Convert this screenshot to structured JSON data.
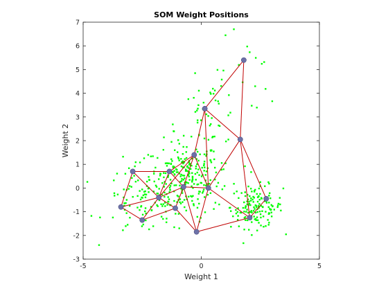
{
  "chart_data": {
    "type": "scatter",
    "title": "SOM Weight Positions",
    "xlabel": "Weight 1",
    "ylabel": "Weight 2",
    "xlim": [
      -5,
      5
    ],
    "ylim": [
      -3,
      7
    ],
    "xticks": [
      -5,
      0,
      5
    ],
    "yticks": [
      -3,
      -2,
      -1,
      0,
      1,
      2,
      3,
      4,
      5,
      6,
      7
    ],
    "grid": false,
    "colors": {
      "data": "#00ff00",
      "neurons": "#6e72a8",
      "edges": "#c00000"
    },
    "neurons": [
      {
        "x": 1.8,
        "y": 5.4
      },
      {
        "x": 0.15,
        "y": 3.35
      },
      {
        "x": 1.65,
        "y": 2.05
      },
      {
        "x": -0.3,
        "y": 1.4
      },
      {
        "x": -2.9,
        "y": 0.7
      },
      {
        "x": -1.35,
        "y": 0.7
      },
      {
        "x": -0.75,
        "y": 0.05
      },
      {
        "x": 0.3,
        "y": 0.0
      },
      {
        "x": -3.4,
        "y": -0.8
      },
      {
        "x": -1.8,
        "y": -0.4
      },
      {
        "x": -2.5,
        "y": -1.35
      },
      {
        "x": -1.1,
        "y": -0.85
      },
      {
        "x": -0.2,
        "y": -1.85
      },
      {
        "x": 2.05,
        "y": -1.25
      },
      {
        "x": 2.75,
        "y": -0.45
      }
    ],
    "edges": [
      [
        0,
        1
      ],
      [
        0,
        2
      ],
      [
        1,
        2
      ],
      [
        1,
        3
      ],
      [
        1,
        7
      ],
      [
        2,
        7
      ],
      [
        2,
        13
      ],
      [
        2,
        14
      ],
      [
        3,
        5
      ],
      [
        3,
        6
      ],
      [
        3,
        9
      ],
      [
        3,
        7
      ],
      [
        4,
        5
      ],
      [
        4,
        8
      ],
      [
        4,
        9
      ],
      [
        5,
        6
      ],
      [
        5,
        9
      ],
      [
        6,
        7
      ],
      [
        6,
        9
      ],
      [
        6,
        11
      ],
      [
        6,
        12
      ],
      [
        7,
        12
      ],
      [
        7,
        13
      ],
      [
        8,
        9
      ],
      [
        8,
        10
      ],
      [
        9,
        10
      ],
      [
        9,
        11
      ],
      [
        10,
        11
      ],
      [
        11,
        12
      ],
      [
        12,
        13
      ],
      [
        13,
        14
      ]
    ],
    "data_clusters": [
      {
        "cx": -0.7,
        "cy": 0.4,
        "sx": 0.75,
        "sy": 0.8,
        "n": 230
      },
      {
        "cx": 2.35,
        "cy": -0.8,
        "sx": 0.55,
        "sy": 0.45,
        "n": 150
      },
      {
        "cx": -2.4,
        "cy": -0.5,
        "sx": 0.85,
        "sy": 0.75,
        "n": 100
      },
      {
        "cx": 0.3,
        "cy": 2.6,
        "sx": 0.65,
        "sy": 1.0,
        "n": 60
      },
      {
        "cx": 1.5,
        "cy": 4.8,
        "sx": 0.9,
        "sy": 1.1,
        "n": 18
      }
    ]
  }
}
